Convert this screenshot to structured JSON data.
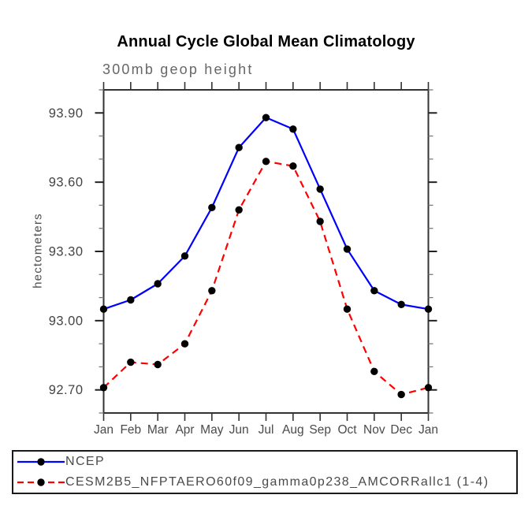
{
  "page": {
    "background": "#ffffff"
  },
  "chart": {
    "title": "Annual Cycle Global Mean Climatology",
    "subtitle": "300mb geop height",
    "y_axis_label": "hectometers"
  },
  "legend": {
    "items": [
      {
        "label": "NCEP",
        "line_color": "#0000ff",
        "line_style": "solid",
        "marker": "filled-circle",
        "marker_color": "#000000"
      },
      {
        "label": "CESM2B5_NFPTAERO60f09_gamma0p238_AMCORRallc1 (1-4)",
        "line_color": "#ff0000",
        "line_style": "dashed",
        "marker": "filled-circle",
        "marker_color": "#000000"
      }
    ]
  },
  "chart_data": {
    "type": "line",
    "title": "Annual Cycle Global Mean Climatology",
    "subtitle": "300mb geop height",
    "xlabel": "",
    "ylabel": "hectometers",
    "x_tick_labels": [
      "Jan",
      "Feb",
      "Mar",
      "Apr",
      "May",
      "Jun",
      "Jul",
      "Aug",
      "Sep",
      "Oct",
      "Nov",
      "Dec",
      "Jan"
    ],
    "ylim": [
      92.6,
      94.0
    ],
    "y_major_ticks": [
      92.7,
      93.0,
      93.3,
      93.6,
      93.9
    ],
    "y_minor_step": 0.1,
    "grid": false,
    "legend_position": "bottom-outside",
    "series": [
      {
        "name": "NCEP",
        "color": "#0000ff",
        "line_style": "solid",
        "marker": "filled-circle",
        "marker_color": "#000000",
        "values": [
          93.05,
          93.09,
          93.16,
          93.28,
          93.49,
          93.75,
          93.88,
          93.83,
          93.57,
          93.31,
          93.13,
          93.07,
          93.05
        ]
      },
      {
        "name": "CESM2B5_NFPTAERO60f09_gamma0p238_AMCORRallc1 (1-4)",
        "color": "#ff0000",
        "line_style": "dashed",
        "marker": "filled-circle",
        "marker_color": "#000000",
        "values": [
          92.71,
          92.82,
          92.81,
          92.9,
          93.13,
          93.48,
          93.69,
          93.67,
          93.43,
          93.05,
          92.78,
          92.68,
          92.71
        ]
      }
    ]
  }
}
